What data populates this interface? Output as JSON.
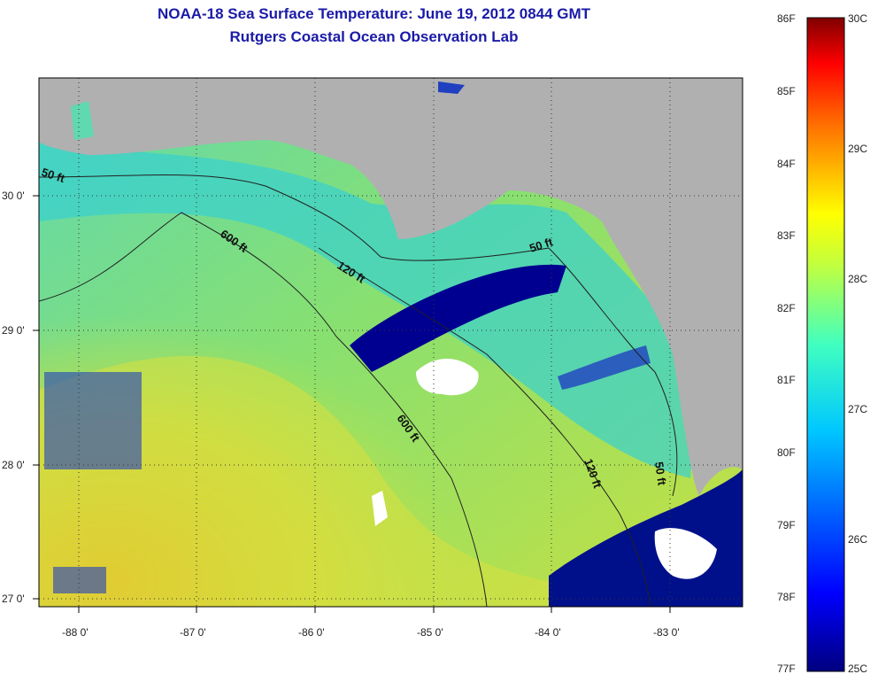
{
  "header": {
    "title": "NOAA-18 Sea Surface Temperature:  June 19, 2012 0844 GMT",
    "subtitle": "Rutgers Coastal Ocean Observation Lab"
  },
  "map": {
    "lon_labels": [
      "-88 0'",
      "-87 0'",
      "-86 0'",
      "-85 0'",
      "-84 0'",
      "-83 0'"
    ],
    "lat_labels": [
      "30 0'",
      "29 0'",
      "28 0'",
      "27 0'"
    ],
    "contour_labels": [
      "50 ft",
      "600 ft",
      "120 ft",
      "50 ft",
      "600 ft",
      "120 ft",
      "50 ft"
    ],
    "colors": {
      "land": "#b0b0b0",
      "cloud": "#ffffff",
      "warm": "#e0c820",
      "mid": "#7fd87a",
      "cool": "#2fd0d8",
      "cold": "#000090"
    }
  },
  "colorbar": {
    "fahrenheit_labels": [
      "86F",
      "85F",
      "84F",
      "83F",
      "82F",
      "81F",
      "80F",
      "79F",
      "78F",
      "77F"
    ],
    "celsius_labels": [
      "30C",
      "29C",
      "28C",
      "27C",
      "26C",
      "25C"
    ],
    "range_f": [
      77,
      86
    ],
    "range_c": [
      25,
      30
    ]
  }
}
